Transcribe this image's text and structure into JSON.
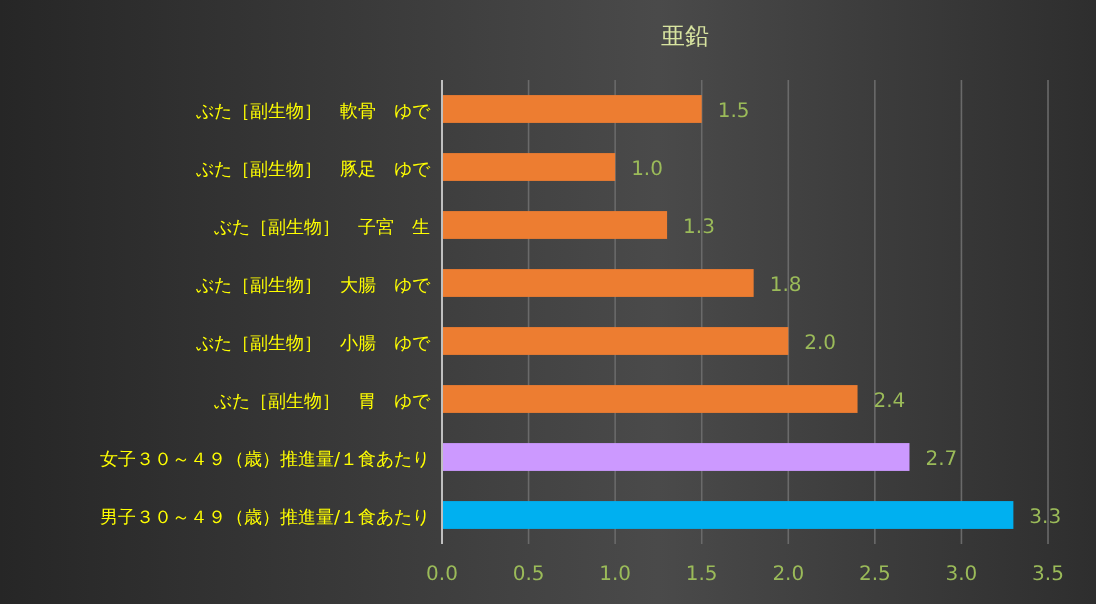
{
  "chart_data": {
    "type": "bar",
    "orientation": "horizontal",
    "title": "亜鉛",
    "categories": [
      "ぶた［副生物］　軟骨　ゆで",
      "ぶた［副生物］　豚足　ゆで",
      "ぶた［副生物］　子宮　生",
      "ぶた［副生物］　大腸　ゆで",
      "ぶた［副生物］　小腸　ゆで",
      "ぶた［副生物］　胃　ゆで",
      "女子３０～４９（歳）推進量/１食あたり",
      "男子３０～４９（歳）推進量/１食あたり"
    ],
    "values": [
      1.5,
      1.0,
      1.3,
      1.8,
      2.0,
      2.4,
      2.7,
      3.3
    ],
    "colors": [
      "#ed7d31",
      "#ed7d31",
      "#ed7d31",
      "#ed7d31",
      "#ed7d31",
      "#ed7d31",
      "#cc99ff",
      "#00b0f0"
    ],
    "xlim": [
      0,
      3.5
    ],
    "xticks": [
      {
        "value": 0,
        "label": "0.0"
      },
      {
        "value": 0.5,
        "label": "0.5"
      },
      {
        "value": 1,
        "label": "1.0"
      },
      {
        "value": 1.5,
        "label": "1.5"
      },
      {
        "value": 2,
        "label": "2.0"
      },
      {
        "value": 2.5,
        "label": "2.5"
      },
      {
        "value": 3,
        "label": "3.0"
      },
      {
        "value": 3.5,
        "label": "3.5"
      }
    ],
    "value_labels": [
      "1.5",
      "1.0",
      "1.3",
      "1.8",
      "2.0",
      "2.4",
      "2.7",
      "3.3"
    ],
    "grid": "x"
  }
}
